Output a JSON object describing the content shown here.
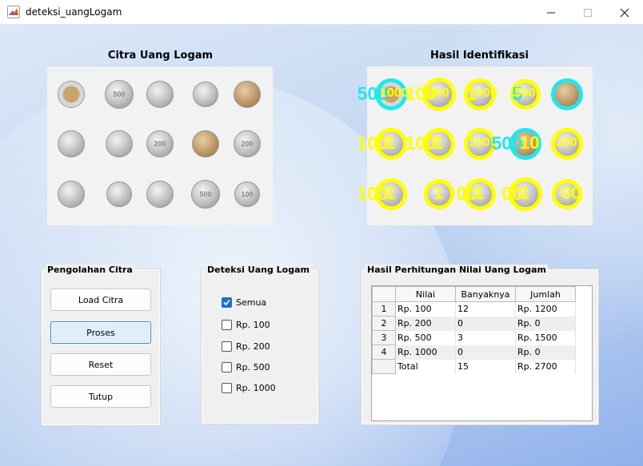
{
  "window": {
    "title": "deteksi_uangLogam"
  },
  "axes": {
    "left_title": "Citra Uang Logam",
    "right_title": "Hasil Identifikasi"
  },
  "coins": [
    {
      "type": "bimetal",
      "mark": ""
    },
    {
      "type": "silver",
      "mark": "500"
    },
    {
      "type": "silver",
      "mark": ""
    },
    {
      "type": "silver",
      "mark": ""
    },
    {
      "type": "gold",
      "mark": ""
    },
    {
      "type": "silver",
      "mark": ""
    },
    {
      "type": "silver",
      "mark": ""
    },
    {
      "type": "silver",
      "mark": "200"
    },
    {
      "type": "gold",
      "mark": ""
    },
    {
      "type": "silver",
      "mark": "200"
    },
    {
      "type": "silver",
      "mark": ""
    },
    {
      "type": "silver",
      "mark": ""
    },
    {
      "type": "silver",
      "mark": ""
    },
    {
      "type": "silver",
      "mark": "500"
    },
    {
      "type": "silver",
      "mark": "100"
    }
  ],
  "identification": [
    {
      "ring": "cyan",
      "label": "500",
      "label_color": "cyan",
      "inner": "1000"
    },
    {
      "ring": "yellow",
      "label": "100",
      "label_color": "yellow",
      "inner": "100"
    },
    {
      "ring": "yellow",
      "label": "1",
      "label_color": "yellow",
      "inner": "1000"
    },
    {
      "ring": "yellow",
      "label": "5",
      "label_color": "cyan",
      "inner": "500"
    },
    {
      "ring": "cyan",
      "label": "",
      "label_color": "cyan",
      "inner": ""
    },
    {
      "ring": "yellow",
      "label": "100",
      "label_color": "yellow",
      "inner": "1"
    },
    {
      "ring": "yellow",
      "label": "100",
      "label_color": "yellow",
      "inner": "1"
    },
    {
      "ring": "yellow",
      "label": "",
      "label_color": "yellow",
      "inner": "100"
    },
    {
      "ring": "cyan",
      "label": "500",
      "label_color": "cyan",
      "inner": "10"
    },
    {
      "ring": "yellow",
      "label": "",
      "label_color": "yellow",
      "inner": "200"
    },
    {
      "ring": "yellow",
      "label": "100",
      "label_color": "yellow",
      "inner": "1"
    },
    {
      "ring": "yellow",
      "label": "",
      "label_color": "yellow",
      "inner": "1"
    },
    {
      "ring": "yellow",
      "label": "00",
      "label_color": "yellow",
      "inner": "1"
    },
    {
      "ring": "yellow",
      "label": "00",
      "label_color": "yellow",
      "inner": "1"
    },
    {
      "ring": "yellow",
      "label": "",
      "label_color": "yellow",
      "inner": "00"
    }
  ],
  "panels": {
    "pengolahan": {
      "title": "Pengolahan Citra",
      "buttons": [
        "Load Citra",
        "Proses",
        "Reset",
        "Tutup"
      ]
    },
    "deteksi": {
      "title": "Deteksi Uang Logam",
      "options": [
        {
          "label": "Semua",
          "checked": true
        },
        {
          "label": "Rp. 100",
          "checked": false
        },
        {
          "label": "Rp. 200",
          "checked": false
        },
        {
          "label": "Rp. 500",
          "checked": false
        },
        {
          "label": "Rp. 1000",
          "checked": false
        }
      ]
    },
    "hasil": {
      "title": "Hasil Perhitungan Nilai Uang Logam",
      "columns": [
        "Nilai",
        "Banyaknya",
        "Jumlah"
      ],
      "rows": [
        {
          "rh": "1",
          "nilai": "Rp. 100",
          "banyak": "12",
          "jumlah": "Rp. 1200"
        },
        {
          "rh": "2",
          "nilai": "Rp. 200",
          "banyak": "0",
          "jumlah": "Rp. 0"
        },
        {
          "rh": "3",
          "nilai": "Rp. 500",
          "banyak": "3",
          "jumlah": "Rp. 1500"
        },
        {
          "rh": "4",
          "nilai": "Rp. 1000",
          "banyak": "0",
          "jumlah": "Rp. 0"
        },
        {
          "rh": "",
          "nilai": "Total",
          "banyak": "15",
          "jumlah": "Rp. 2700"
        }
      ]
    }
  },
  "colors": {
    "ring_yellow": "#ffff00",
    "ring_cyan": "#22e6ee",
    "checkbox_on": "#1a6fcf",
    "active_button_border": "#3a87d8"
  }
}
